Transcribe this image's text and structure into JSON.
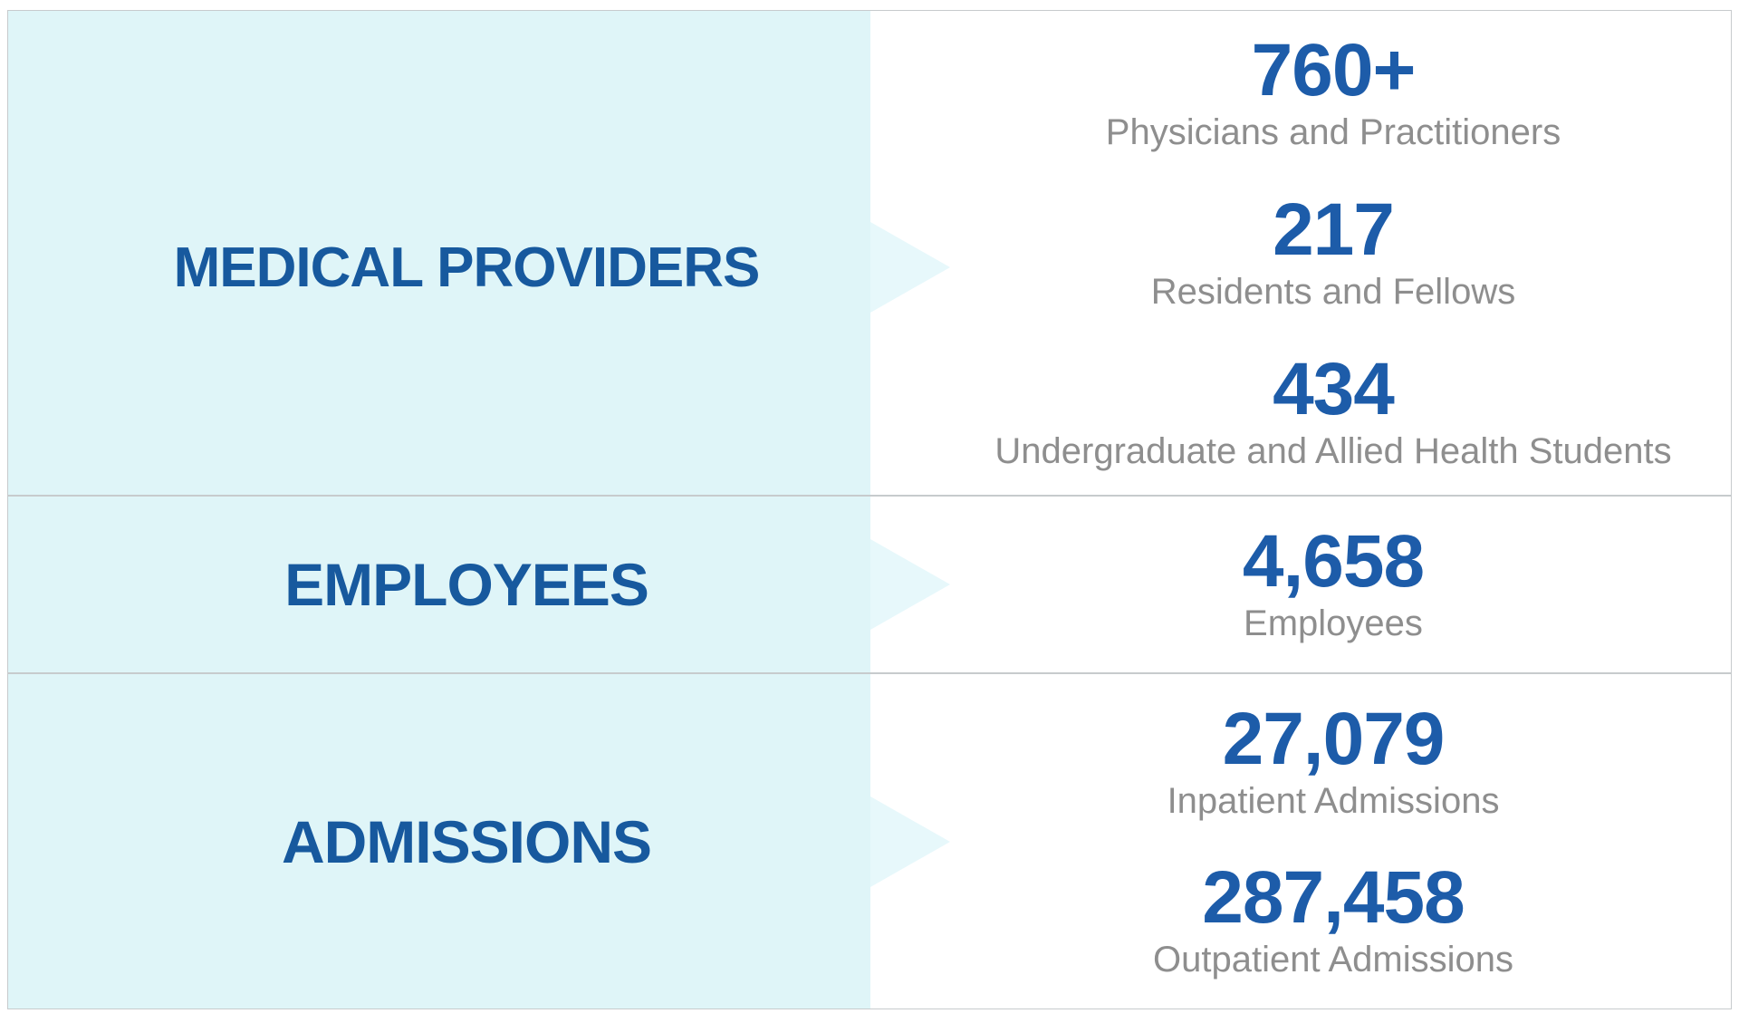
{
  "colors": {
    "page-bg": "#ffffff",
    "cell-bg": "#dff5f8",
    "arrow": "#e7f8fb",
    "title-blue": "#17599e",
    "value-blue": "#1d5ca9",
    "label-gray": "#8e8e8e",
    "border-gray": "#c7cbcd"
  },
  "table": {
    "rows": [
      {
        "title": "MEDICAL PROVIDERS",
        "stats": [
          {
            "value": "760+",
            "label": "Physicians and Practitioners"
          },
          {
            "value": "217",
            "label": "Residents and Fellows"
          },
          {
            "value": "434",
            "label": "Undergraduate and Allied Health Students"
          }
        ]
      },
      {
        "title": "EMPLOYEES",
        "stats": [
          {
            "value": "4,658",
            "label": "Employees"
          }
        ]
      },
      {
        "title": "ADMISSIONS",
        "stats": [
          {
            "value": "27,079",
            "label": "Inpatient Admissions"
          },
          {
            "value": "287,458",
            "label": "Outpatient Admissions"
          }
        ]
      }
    ]
  },
  "chart_data": {
    "type": "table",
    "title": "",
    "categories": [
      "MEDICAL PROVIDERS",
      "EMPLOYEES",
      "ADMISSIONS"
    ],
    "rows": [
      {
        "category": "MEDICAL PROVIDERS",
        "metrics": [
          {
            "label": "Physicians and Practitioners",
            "value": 760,
            "display": "760+"
          },
          {
            "label": "Residents and Fellows",
            "value": 217,
            "display": "217"
          },
          {
            "label": "Undergraduate and Allied Health Students",
            "value": 434,
            "display": "434"
          }
        ]
      },
      {
        "category": "EMPLOYEES",
        "metrics": [
          {
            "label": "Employees",
            "value": 4658,
            "display": "4,658"
          }
        ]
      },
      {
        "category": "ADMISSIONS",
        "metrics": [
          {
            "label": "Inpatient Admissions",
            "value": 27079,
            "display": "27,079"
          },
          {
            "label": "Outpatient Admissions",
            "value": 287458,
            "display": "287,458"
          }
        ]
      }
    ],
    "legend": false,
    "grid": "horizontal-row-dividers"
  }
}
